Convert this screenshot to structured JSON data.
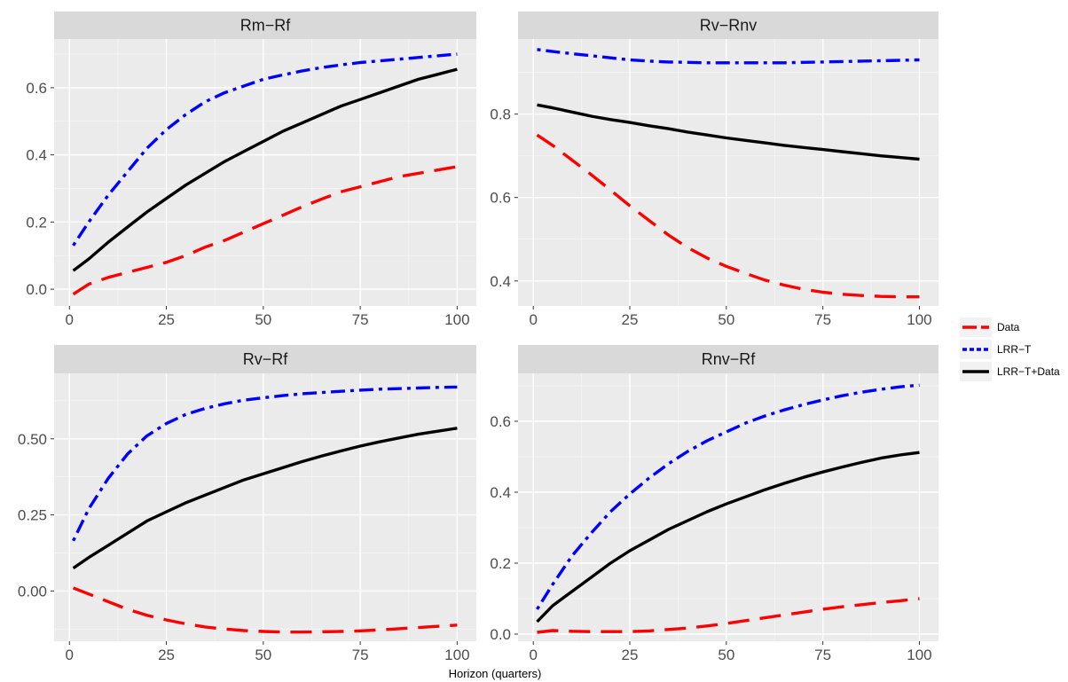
{
  "chart_data": {
    "type": "line",
    "xlabel": "Horizon (quarters)",
    "legend_position": "right",
    "series_styles": [
      {
        "name": "Data",
        "color": "#ff0000",
        "dash": "long-dash"
      },
      {
        "name": "LRR−T",
        "color": "#0000ff",
        "dash": "dot-dash"
      },
      {
        "name": "LRR−T+Data",
        "color": "#000000",
        "dash": "solid"
      }
    ],
    "panels": [
      {
        "title": "Rm−Rf",
        "xlim": [
          -3.95,
          104.95
        ],
        "ylim": [
          -0.05,
          0.745
        ],
        "xticks": [
          0,
          25,
          50,
          75,
          100
        ],
        "xtick_labels": [
          "0",
          "25",
          "50",
          "75",
          "100"
        ],
        "yticks": [
          0.0,
          0.2,
          0.4,
          0.6
        ],
        "ytick_labels": [
          "0.0",
          "0.2",
          "0.4",
          "0.6"
        ],
        "x": [
          1,
          5,
          10,
          15,
          20,
          25,
          30,
          35,
          40,
          45,
          50,
          55,
          60,
          65,
          70,
          75,
          80,
          85,
          90,
          95,
          100
        ],
        "series": [
          {
            "name": "Data",
            "values": [
              -0.015,
              0.015,
              0.035,
              0.05,
              0.065,
              0.08,
              0.1,
              0.125,
              0.145,
              0.17,
              0.195,
              0.22,
              0.245,
              0.268,
              0.29,
              0.305,
              0.32,
              0.335,
              0.345,
              0.355,
              0.365
            ]
          },
          {
            "name": "LRR−T",
            "values": [
              0.13,
              0.2,
              0.28,
              0.35,
              0.42,
              0.475,
              0.52,
              0.558,
              0.585,
              0.605,
              0.625,
              0.638,
              0.65,
              0.66,
              0.668,
              0.675,
              0.68,
              0.685,
              0.69,
              0.695,
              0.7
            ]
          },
          {
            "name": "LRR−T+Data",
            "values": [
              0.055,
              0.09,
              0.14,
              0.185,
              0.23,
              0.27,
              0.31,
              0.345,
              0.38,
              0.41,
              0.44,
              0.47,
              0.495,
              0.52,
              0.545,
              0.565,
              0.585,
              0.605,
              0.625,
              0.64,
              0.655
            ]
          }
        ]
      },
      {
        "title": "Rv−Rnv",
        "xlim": [
          -3.95,
          104.95
        ],
        "ylim": [
          0.34,
          0.98
        ],
        "xticks": [
          0,
          25,
          50,
          75,
          100
        ],
        "xtick_labels": [
          "0",
          "25",
          "50",
          "75",
          "100"
        ],
        "yticks": [
          0.4,
          0.6,
          0.8
        ],
        "ytick_labels": [
          "0.4",
          "0.6",
          "0.8"
        ],
        "x": [
          1,
          5,
          10,
          15,
          20,
          25,
          30,
          35,
          40,
          45,
          50,
          55,
          60,
          65,
          70,
          75,
          80,
          85,
          90,
          95,
          100
        ],
        "series": [
          {
            "name": "Data",
            "values": [
              0.75,
              0.725,
              0.69,
              0.655,
              0.618,
              0.58,
              0.545,
              0.51,
              0.48,
              0.455,
              0.435,
              0.418,
              0.402,
              0.39,
              0.38,
              0.373,
              0.368,
              0.365,
              0.363,
              0.362,
              0.362
            ]
          },
          {
            "name": "LRR−T",
            "values": [
              0.955,
              0.95,
              0.945,
              0.94,
              0.935,
              0.93,
              0.927,
              0.925,
              0.924,
              0.923,
              0.923,
              0.923,
              0.923,
              0.923,
              0.924,
              0.925,
              0.926,
              0.927,
              0.928,
              0.929,
              0.93
            ]
          },
          {
            "name": "LRR−T+Data",
            "values": [
              0.822,
              0.815,
              0.805,
              0.795,
              0.787,
              0.78,
              0.772,
              0.765,
              0.757,
              0.75,
              0.743,
              0.737,
              0.731,
              0.725,
              0.72,
              0.715,
              0.71,
              0.705,
              0.7,
              0.696,
              0.692
            ]
          }
        ]
      },
      {
        "title": "Rv−Rf",
        "xlim": [
          -3.95,
          104.95
        ],
        "ylim": [
          -0.165,
          0.715
        ],
        "xticks": [
          0,
          25,
          50,
          75,
          100
        ],
        "xtick_labels": [
          "0",
          "25",
          "50",
          "75",
          "100"
        ],
        "yticks": [
          0.0,
          0.25,
          0.5
        ],
        "ytick_labels": [
          "0.00",
          "0.25",
          "0.50"
        ],
        "x": [
          1,
          5,
          10,
          15,
          20,
          25,
          30,
          35,
          40,
          45,
          50,
          55,
          60,
          65,
          70,
          75,
          80,
          85,
          90,
          95,
          100
        ],
        "series": [
          {
            "name": "Data",
            "values": [
              0.01,
              -0.01,
              -0.035,
              -0.06,
              -0.08,
              -0.095,
              -0.108,
              -0.118,
              -0.125,
              -0.13,
              -0.133,
              -0.135,
              -0.135,
              -0.134,
              -0.133,
              -0.131,
              -0.128,
              -0.124,
              -0.12,
              -0.116,
              -0.112
            ]
          },
          {
            "name": "LRR−T",
            "values": [
              0.165,
              0.27,
              0.37,
              0.45,
              0.51,
              0.55,
              0.58,
              0.6,
              0.615,
              0.627,
              0.635,
              0.642,
              0.648,
              0.652,
              0.656,
              0.66,
              0.663,
              0.665,
              0.667,
              0.669,
              0.67
            ]
          },
          {
            "name": "LRR−T+Data",
            "values": [
              0.075,
              0.11,
              0.15,
              0.19,
              0.23,
              0.26,
              0.29,
              0.315,
              0.34,
              0.365,
              0.385,
              0.405,
              0.425,
              0.443,
              0.46,
              0.476,
              0.49,
              0.503,
              0.515,
              0.525,
              0.535
            ]
          }
        ]
      },
      {
        "title": "Rnv−Rf",
        "xlim": [
          -3.95,
          104.95
        ],
        "ylim": [
          -0.02,
          0.735
        ],
        "xticks": [
          0,
          25,
          50,
          75,
          100
        ],
        "xtick_labels": [
          "0",
          "25",
          "50",
          "75",
          "100"
        ],
        "yticks": [
          0.0,
          0.2,
          0.4,
          0.6
        ],
        "ytick_labels": [
          "0.0",
          "0.2",
          "0.4",
          "0.6"
        ],
        "x": [
          1,
          5,
          10,
          15,
          20,
          25,
          30,
          35,
          40,
          45,
          50,
          55,
          60,
          65,
          70,
          75,
          80,
          85,
          90,
          95,
          100
        ],
        "series": [
          {
            "name": "Data",
            "values": [
              0.005,
              0.01,
              0.008,
              0.007,
              0.007,
              0.007,
              0.009,
              0.013,
              0.017,
              0.023,
              0.03,
              0.038,
              0.046,
              0.054,
              0.062,
              0.07,
              0.077,
              0.083,
              0.089,
              0.094,
              0.1
            ]
          },
          {
            "name": "LRR−T",
            "values": [
              0.07,
              0.14,
              0.22,
              0.285,
              0.345,
              0.395,
              0.44,
              0.48,
              0.515,
              0.545,
              0.57,
              0.595,
              0.615,
              0.632,
              0.647,
              0.66,
              0.672,
              0.682,
              0.69,
              0.697,
              0.702
            ]
          },
          {
            "name": "LRR−T+Data",
            "values": [
              0.035,
              0.08,
              0.12,
              0.16,
              0.2,
              0.235,
              0.265,
              0.295,
              0.32,
              0.345,
              0.367,
              0.387,
              0.407,
              0.425,
              0.442,
              0.457,
              0.471,
              0.484,
              0.496,
              0.505,
              0.512
            ]
          }
        ]
      }
    ]
  }
}
